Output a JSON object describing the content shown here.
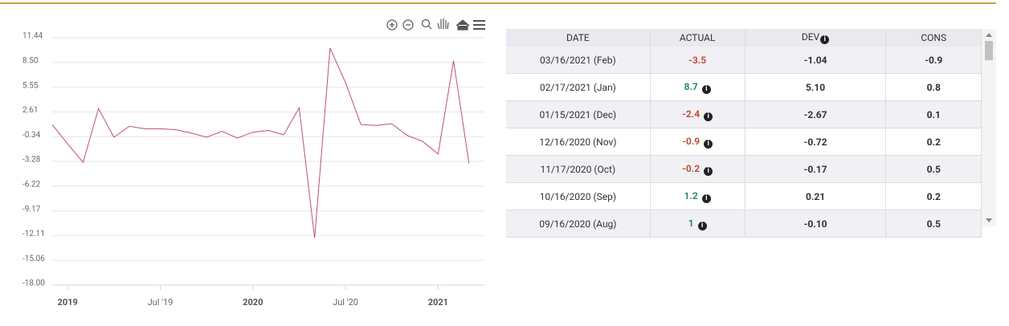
{
  "chart_data": {
    "type": "line",
    "x": [
      "2018-12",
      "2019-01",
      "2019-02",
      "2019-03",
      "2019-04",
      "2019-05",
      "2019-06",
      "2019-07",
      "2019-08",
      "2019-09",
      "2019-10",
      "2019-11",
      "2019-12",
      "2020-01",
      "2020-02",
      "2020-03",
      "2020-04",
      "2020-05",
      "2020-06",
      "2020-07",
      "2020-08",
      "2020-09",
      "2020-10",
      "2020-11",
      "2020-12",
      "2021-01",
      "2021-02",
      "2021-03"
    ],
    "series": [
      {
        "color": "#c0506a",
        "values": [
          1.1,
          -1.2,
          -3.4,
          3.0,
          -0.4,
          0.9,
          0.6,
          0.6,
          0.5,
          0.1,
          -0.4,
          0.3,
          -0.5,
          0.2,
          0.4,
          -0.1,
          3.1,
          -12.4,
          10.2,
          6.1,
          1.1,
          1,
          1.2,
          -0.2,
          -0.9,
          -2.4,
          8.7,
          -3.5
        ]
      }
    ],
    "xlim": [
      "2018-12",
      "2021-04"
    ],
    "xticks": [
      {
        "value": "2019-01",
        "label": "2019"
      },
      {
        "value": "2019-07",
        "label": "Jul '19"
      },
      {
        "value": "2020-01",
        "label": "2020"
      },
      {
        "value": "2020-07",
        "label": "Jul '20"
      },
      {
        "value": "2021-01",
        "label": "2021"
      }
    ],
    "ylim": [
      -18,
      11.44
    ],
    "yticks": [
      11.44,
      {
        "value": 8.5,
        "label": "8.50"
      },
      5.55,
      2.61,
      -0.34,
      -3.28,
      -6.22,
      -9.17,
      -12.11,
      -15.06,
      {
        "value": -18,
        "label": "-18.00"
      }
    ],
    "grid": true
  },
  "table": {
    "header": [
      "DATE",
      "ACTUAL",
      "DEV",
      "CONS"
    ],
    "rows": [
      [
        "03/16/2021 (Feb)",
        "-3.5",
        "-1.04",
        "-0.9"
      ],
      [
        "02/17/2021 (Jan)",
        "8.7",
        "5.10",
        "0.8"
      ],
      [
        "01/15/2021 (Dec)",
        "-2.4",
        "-2.67",
        "0.1"
      ],
      [
        "12/16/2020 (Nov)",
        "-0.9",
        "-0.72",
        "0.2"
      ],
      [
        "11/17/2020 (Oct)",
        "-0.2",
        "-0.17",
        "0.5"
      ],
      [
        "10/16/2020 (Sep)",
        "1.2",
        "0.21",
        "0.2"
      ],
      [
        "09/16/2020 (Aug)",
        "1",
        "-0.10",
        "0.5"
      ]
    ]
  }
}
